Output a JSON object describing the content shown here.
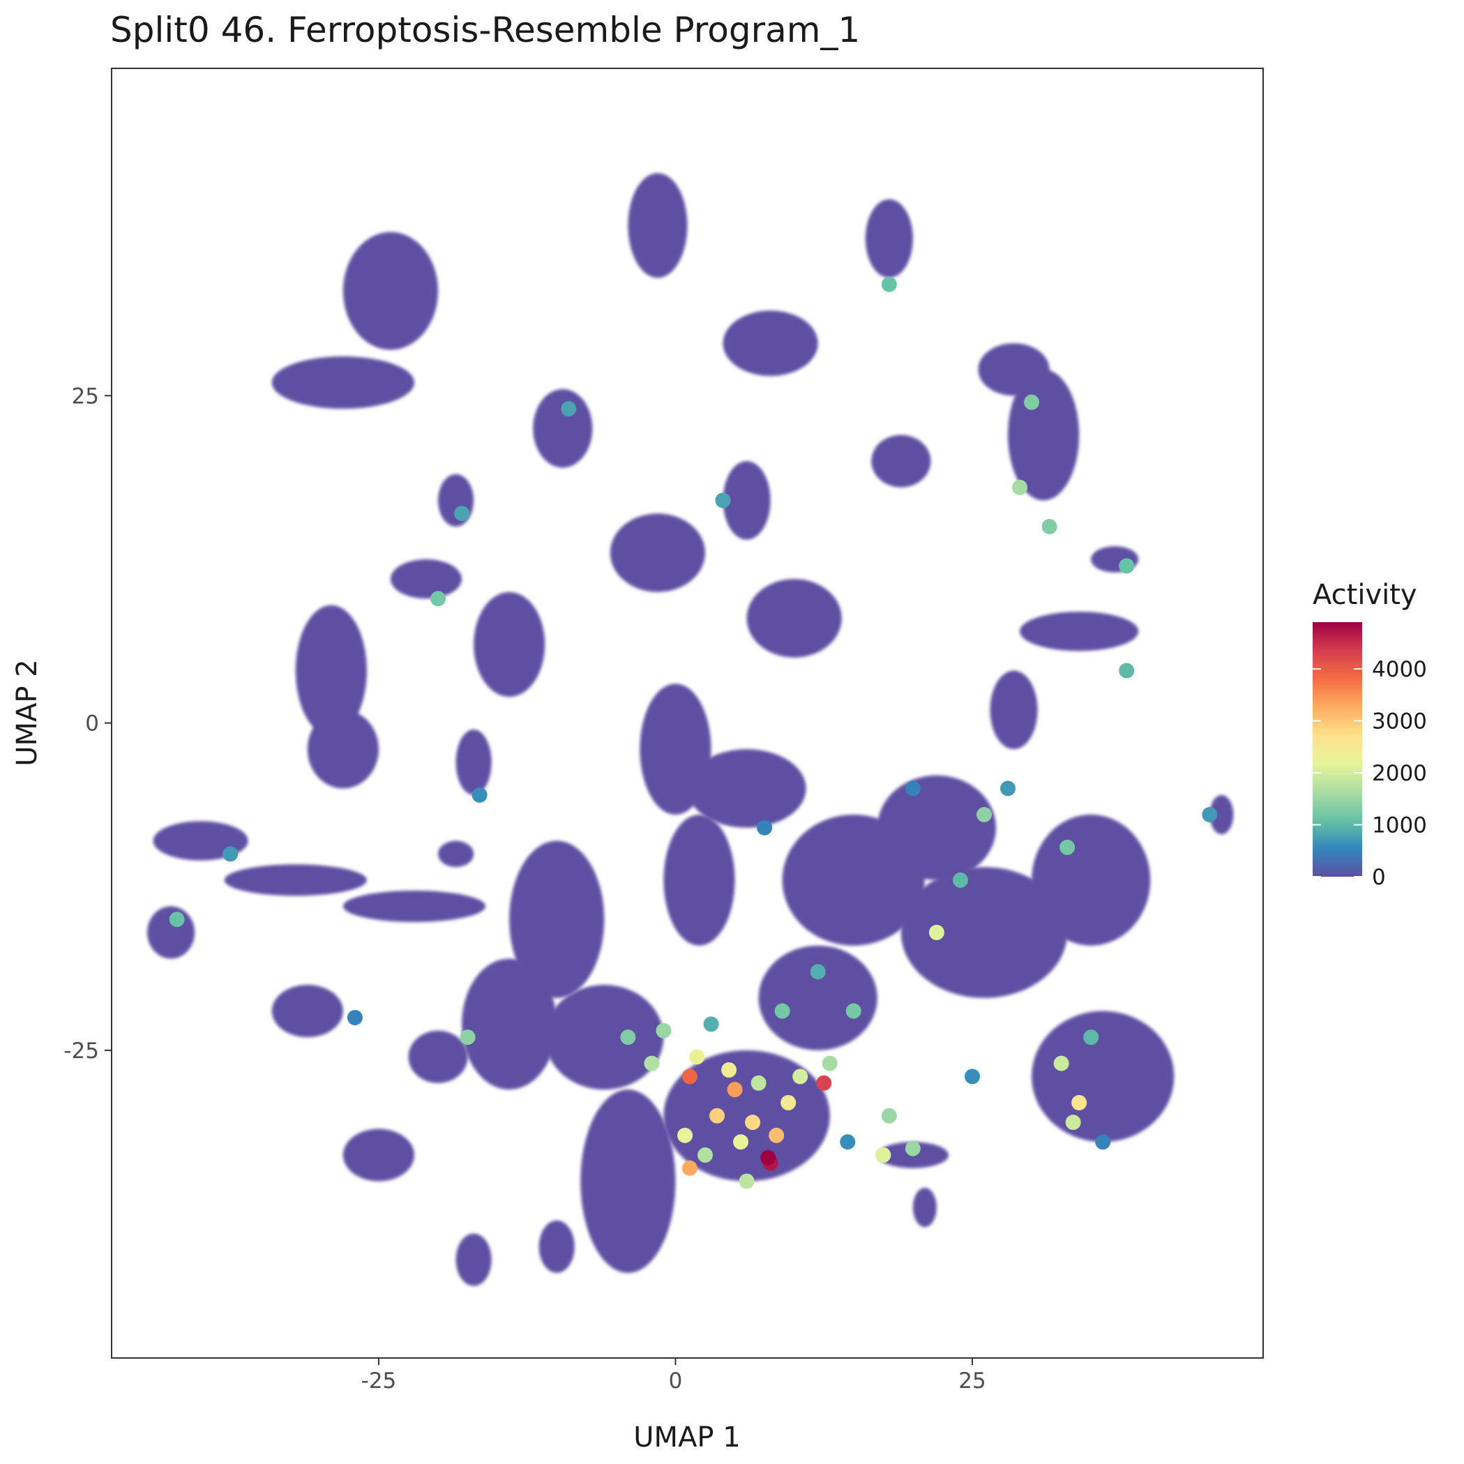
{
  "chart_data": {
    "type": "scatter",
    "title": "Split0 46. Ferroptosis-Resemble Program_1",
    "xlabel": "UMAP 1",
    "ylabel": "UMAP 2",
    "xlim": [
      -47.5,
      49.5
    ],
    "ylim": [
      -48.5,
      50
    ],
    "x_ticks": [
      -25,
      0,
      25
    ],
    "x_tick_labels": [
      "-25",
      "0",
      "25"
    ],
    "y_ticks": [
      -25,
      0,
      25
    ],
    "y_tick_labels": [
      "-25",
      "0",
      "25"
    ],
    "grid": false,
    "legend": {
      "title": "Activity",
      "placement": "right",
      "range": [
        0,
        4900
      ],
      "ticks": [
        0,
        1000,
        2000,
        3000,
        4000
      ],
      "tick_labels": [
        "0",
        "1000",
        "2000",
        "3000",
        "4000"
      ],
      "colormap": "Spectral (reversed)",
      "colors": [
        "#5e4fa2",
        "#3288bd",
        "#66c2a5",
        "#abdda4",
        "#e6f598",
        "#fee08b",
        "#fdae61",
        "#f46d43",
        "#d53e4f",
        "#9e0142"
      ]
    },
    "clusters": [
      {
        "x": -24,
        "y": 33,
        "rx": 4,
        "ry": 4.5
      },
      {
        "x": -28,
        "y": 26,
        "rx": 6,
        "ry": 2
      },
      {
        "x": -1.5,
        "y": 38,
        "rx": 2.5,
        "ry": 4
      },
      {
        "x": 18,
        "y": 37,
        "rx": 2,
        "ry": 3
      },
      {
        "x": 8,
        "y": 29,
        "rx": 4,
        "ry": 2.5
      },
      {
        "x": 28.5,
        "y": 27,
        "rx": 3,
        "ry": 2
      },
      {
        "x": 31,
        "y": 22,
        "rx": 3,
        "ry": 5
      },
      {
        "x": -9.5,
        "y": 22.5,
        "rx": 2.5,
        "ry": 3
      },
      {
        "x": 19,
        "y": 20,
        "rx": 2.5,
        "ry": 2
      },
      {
        "x": -18.5,
        "y": 17,
        "rx": 1.5,
        "ry": 2
      },
      {
        "x": -21,
        "y": 11,
        "rx": 3,
        "ry": 1.5
      },
      {
        "x": -29,
        "y": 4,
        "rx": 3,
        "ry": 5
      },
      {
        "x": -28,
        "y": -2,
        "rx": 3,
        "ry": 3
      },
      {
        "x": 37,
        "y": 12.5,
        "rx": 2,
        "ry": 1
      },
      {
        "x": 34,
        "y": 7,
        "rx": 5,
        "ry": 1.5
      },
      {
        "x": 28.5,
        "y": 1,
        "rx": 2,
        "ry": 3
      },
      {
        "x": -14,
        "y": 6,
        "rx": 3,
        "ry": 4
      },
      {
        "x": -1.5,
        "y": 13,
        "rx": 4,
        "ry": 3
      },
      {
        "x": 10,
        "y": 8,
        "rx": 4,
        "ry": 3
      },
      {
        "x": 6,
        "y": 17,
        "rx": 2,
        "ry": 3
      },
      {
        "x": -17,
        "y": -3,
        "rx": 1.5,
        "ry": 2.5
      },
      {
        "x": -18.5,
        "y": -10,
        "rx": 1.5,
        "ry": 1
      },
      {
        "x": -40,
        "y": -9,
        "rx": 4,
        "ry": 1.5
      },
      {
        "x": -32,
        "y": -12,
        "rx": 6,
        "ry": 1.2
      },
      {
        "x": -22,
        "y": -14,
        "rx": 6,
        "ry": 1.2
      },
      {
        "x": -42.5,
        "y": -16,
        "rx": 2,
        "ry": 2
      },
      {
        "x": -31,
        "y": -22,
        "rx": 3,
        "ry": 2
      },
      {
        "x": -20,
        "y": -25.5,
        "rx": 2.5,
        "ry": 2
      },
      {
        "x": -25,
        "y": -33,
        "rx": 3,
        "ry": 2
      },
      {
        "x": -14,
        "y": -23,
        "rx": 4,
        "ry": 5
      },
      {
        "x": -10,
        "y": -15,
        "rx": 4,
        "ry": 6
      },
      {
        "x": -4,
        "y": -35,
        "rx": 4,
        "ry": 7
      },
      {
        "x": 0,
        "y": -2,
        "rx": 3,
        "ry": 5
      },
      {
        "x": 2,
        "y": -12,
        "rx": 3,
        "ry": 5
      },
      {
        "x": 6,
        "y": -5,
        "rx": 5,
        "ry": 3
      },
      {
        "x": 15,
        "y": -12,
        "rx": 6,
        "ry": 5
      },
      {
        "x": 22,
        "y": -8,
        "rx": 5,
        "ry": 4
      },
      {
        "x": 26,
        "y": -16,
        "rx": 7,
        "ry": 5
      },
      {
        "x": 35,
        "y": -12,
        "rx": 5,
        "ry": 5
      },
      {
        "x": 36,
        "y": -27,
        "rx": 6,
        "ry": 5
      },
      {
        "x": 12,
        "y": -21,
        "rx": 5,
        "ry": 4
      },
      {
        "x": -6,
        "y": -24,
        "rx": 5,
        "ry": 4
      },
      {
        "x": 6,
        "y": -30,
        "rx": 7,
        "ry": 5
      },
      {
        "x": 20,
        "y": -33,
        "rx": 3,
        "ry": 1
      },
      {
        "x": 21,
        "y": -37,
        "rx": 1,
        "ry": 1.5
      },
      {
        "x": 46,
        "y": -7,
        "rx": 1,
        "ry": 1.5
      },
      {
        "x": -10,
        "y": -40,
        "rx": 1.5,
        "ry": 2
      },
      {
        "x": -17,
        "y": -41,
        "rx": 1.5,
        "ry": 2
      }
    ],
    "active_points": [
      {
        "x": 7.8,
        "y": -33.2,
        "activity": 4900
      },
      {
        "x": 8.0,
        "y": -33.6,
        "activity": 4700
      },
      {
        "x": 12.5,
        "y": -27.5,
        "activity": 4300
      },
      {
        "x": 1.2,
        "y": -27.0,
        "activity": 3900
      },
      {
        "x": 5.0,
        "y": -28.0,
        "activity": 3400
      },
      {
        "x": 1.2,
        "y": -34.0,
        "activity": 3300
      },
      {
        "x": 8.5,
        "y": -31.5,
        "activity": 3100
      },
      {
        "x": 3.5,
        "y": -30.0,
        "activity": 2900
      },
      {
        "x": 6.5,
        "y": -30.5,
        "activity": 2800
      },
      {
        "x": 34.0,
        "y": -29.0,
        "activity": 2600
      },
      {
        "x": 9.5,
        "y": -29.0,
        "activity": 2500
      },
      {
        "x": 4.5,
        "y": -26.5,
        "activity": 2400
      },
      {
        "x": 1.8,
        "y": -25.5,
        "activity": 2300
      },
      {
        "x": 0.8,
        "y": -31.5,
        "activity": 2200
      },
      {
        "x": 5.5,
        "y": -32.0,
        "activity": 2200
      },
      {
        "x": 22.0,
        "y": -16.0,
        "activity": 2100
      },
      {
        "x": 17.5,
        "y": -33.0,
        "activity": 2100
      },
      {
        "x": 10.5,
        "y": -27.0,
        "activity": 2000
      },
      {
        "x": 32.5,
        "y": -26.0,
        "activity": 1900
      },
      {
        "x": 33.5,
        "y": -30.5,
        "activity": 1900
      },
      {
        "x": 7.0,
        "y": -27.5,
        "activity": 1800
      },
      {
        "x": 6.0,
        "y": -35.0,
        "activity": 1800
      },
      {
        "x": -2.0,
        "y": -26.0,
        "activity": 1700
      },
      {
        "x": 2.5,
        "y": -33.0,
        "activity": 1700
      },
      {
        "x": 13.0,
        "y": -26.0,
        "activity": 1600
      },
      {
        "x": 29.0,
        "y": 18.0,
        "activity": 1600
      },
      {
        "x": 18.0,
        "y": -30.0,
        "activity": 1500
      },
      {
        "x": 20.0,
        "y": -32.5,
        "activity": 1500
      },
      {
        "x": -1.0,
        "y": -23.5,
        "activity": 1500
      },
      {
        "x": 26.0,
        "y": -7.0,
        "activity": 1400
      },
      {
        "x": -17.5,
        "y": -24.0,
        "activity": 1400
      },
      {
        "x": -4.0,
        "y": -24.0,
        "activity": 1300
      },
      {
        "x": 30.0,
        "y": 24.5,
        "activity": 1300
      },
      {
        "x": 31.5,
        "y": 15.0,
        "activity": 1300
      },
      {
        "x": 33.0,
        "y": -9.5,
        "activity": 1200
      },
      {
        "x": 15.0,
        "y": -22.0,
        "activity": 1200
      },
      {
        "x": 9.0,
        "y": -22.0,
        "activity": 1200
      },
      {
        "x": -20.0,
        "y": 9.5,
        "activity": 1200
      },
      {
        "x": -42.0,
        "y": -15.0,
        "activity": 1100
      },
      {
        "x": 18.0,
        "y": 33.5,
        "activity": 1100
      },
      {
        "x": 38.0,
        "y": 12.0,
        "activity": 1100
      },
      {
        "x": 38.0,
        "y": 4.0,
        "activity": 1000
      },
      {
        "x": 24.0,
        "y": -12.0,
        "activity": 1000
      },
      {
        "x": 35.0,
        "y": -24.0,
        "activity": 1000
      },
      {
        "x": 3.0,
        "y": -23.0,
        "activity": 900
      },
      {
        "x": 12.0,
        "y": -19.0,
        "activity": 900
      },
      {
        "x": -9.0,
        "y": 24.0,
        "activity": 800
      },
      {
        "x": -18.0,
        "y": 16.0,
        "activity": 800
      },
      {
        "x": 4.0,
        "y": 17.0,
        "activity": 800
      },
      {
        "x": 28.0,
        "y": -5.0,
        "activity": 700
      },
      {
        "x": 45.0,
        "y": -7.0,
        "activity": 700
      },
      {
        "x": -37.5,
        "y": -10.0,
        "activity": 700
      },
      {
        "x": 25.0,
        "y": -27.0,
        "activity": 600
      },
      {
        "x": -16.5,
        "y": -5.5,
        "activity": 600
      },
      {
        "x": 14.5,
        "y": -32.0,
        "activity": 600
      },
      {
        "x": 20.0,
        "y": -5.0,
        "activity": 500
      },
      {
        "x": -27.0,
        "y": -22.5,
        "activity": 500
      },
      {
        "x": 7.5,
        "y": -8.0,
        "activity": 500
      },
      {
        "x": 36.0,
        "y": -32.0,
        "activity": 500
      }
    ]
  }
}
